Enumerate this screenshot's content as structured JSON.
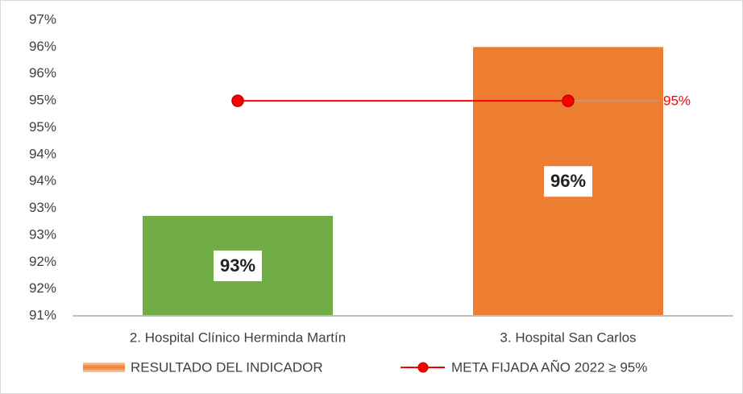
{
  "chart_data": {
    "type": "bar",
    "categories": [
      "2. Hospital Clínico Herminda Martín",
      "3. Hospital San Carlos"
    ],
    "series": [
      {
        "name": "RESULTADO DEL INDICADOR",
        "type": "bar",
        "colors": [
          "#70ad47",
          "#ed7d31"
        ],
        "values": [
          92.86,
          96.0
        ],
        "value_labels": [
          "93%",
          "96%"
        ]
      },
      {
        "name": "META FIJADA AÑO 2022 ≥ 95%",
        "type": "line",
        "color": "#ff0000",
        "values": [
          95,
          95
        ],
        "value_labels": [
          null,
          "95%"
        ]
      }
    ],
    "ylim": [
      91,
      96.5
    ],
    "yticks": [
      {
        "value": 91,
        "label": "91%"
      },
      {
        "value": 91.5,
        "label": "92%"
      },
      {
        "value": 92,
        "label": "92%"
      },
      {
        "value": 92.5,
        "label": "93%"
      },
      {
        "value": 93,
        "label": "93%"
      },
      {
        "value": 93.5,
        "label": "94%"
      },
      {
        "value": 94,
        "label": "94%"
      },
      {
        "value": 94.5,
        "label": "95%"
      },
      {
        "value": 95,
        "label": "95%"
      },
      {
        "value": 95.5,
        "label": "96%"
      },
      {
        "value": 96,
        "label": "96%"
      },
      {
        "value": 96.5,
        "label": "97%"
      }
    ],
    "grid": false,
    "legend": "bottom"
  }
}
